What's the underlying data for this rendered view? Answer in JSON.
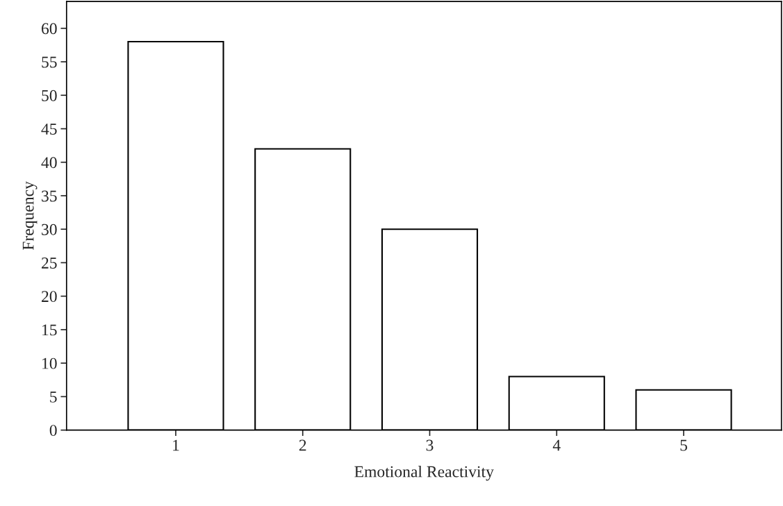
{
  "chart_data": {
    "type": "bar",
    "xlabel": "Emotional Reactivity",
    "ylabel": "Frequency",
    "categories": [
      "1",
      "2",
      "3",
      "4",
      "5"
    ],
    "values": [
      58,
      42,
      30,
      8,
      6
    ],
    "color": "#ffffff",
    "ylim": [
      0,
      64
    ],
    "yticks": [
      0,
      5,
      10,
      15,
      20,
      25,
      30,
      35,
      40,
      45,
      50,
      55,
      60
    ],
    "grid": false
  }
}
